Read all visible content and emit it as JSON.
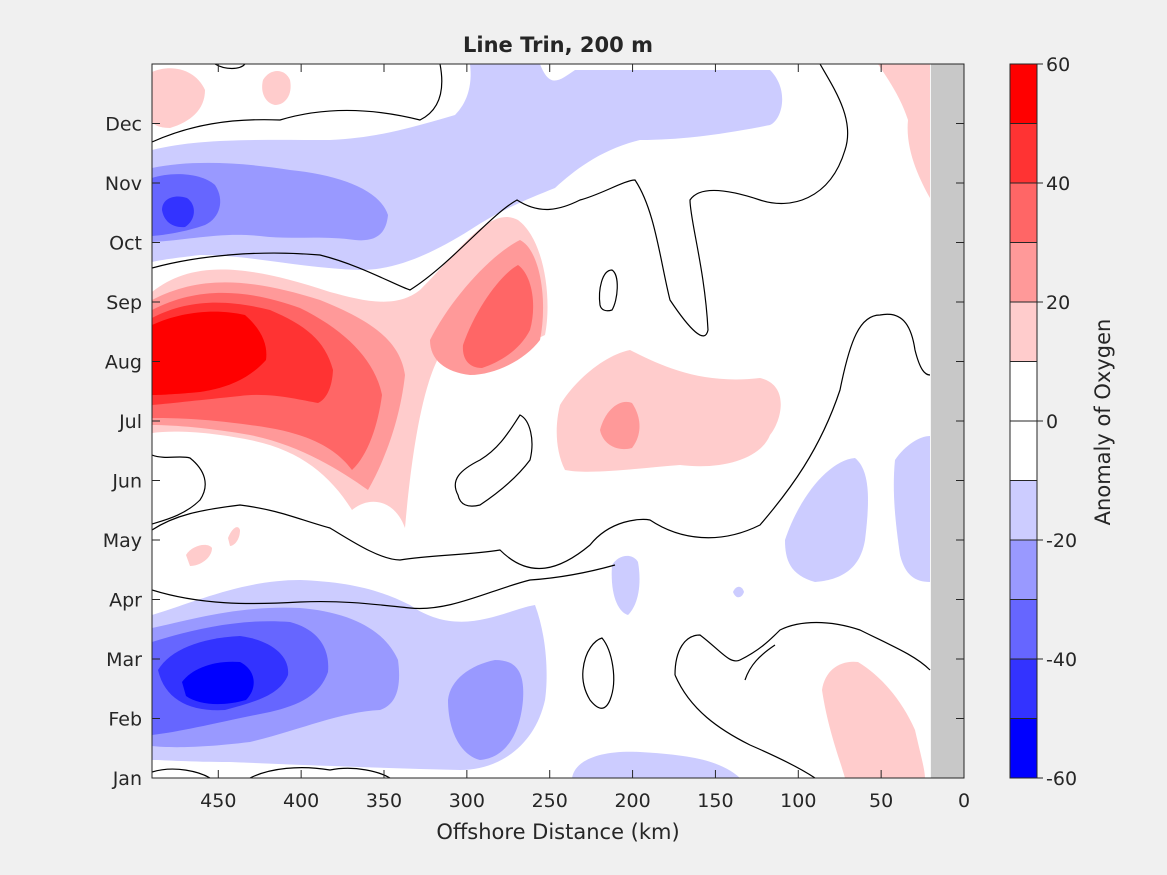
{
  "chart_data": {
    "type": "heatmap",
    "title": "Line Trin, 200 m",
    "xlabel": "Offshore Distance (km)",
    "ylabel": "",
    "xlim": [
      490,
      0
    ],
    "x_reversed": true,
    "xticks": [
      450,
      400,
      350,
      300,
      250,
      200,
      150,
      100,
      50,
      0
    ],
    "ylim": [
      1,
      13
    ],
    "ytick_positions": [
      1,
      2,
      3,
      4,
      5,
      6,
      7,
      8,
      9,
      10,
      11,
      12
    ],
    "yticks": [
      "Jan",
      "Feb",
      "Mar",
      "Apr",
      "May",
      "Jun",
      "Jul",
      "Aug",
      "Sep",
      "Oct",
      "Nov",
      "Dec"
    ],
    "land_mask_from_km": 20,
    "colorbar": {
      "label": "Anomaly of Oxygen",
      "range": [
        -60,
        60
      ],
      "ticks": [
        60,
        40,
        20,
        0,
        -20,
        -40,
        -60
      ],
      "levels": [
        -60,
        -50,
        -40,
        -30,
        -20,
        -10,
        0,
        10,
        20,
        30,
        40,
        50,
        60
      ],
      "colors": [
        "#0000ff",
        "#3333ff",
        "#6666ff",
        "#9999ff",
        "#ccccff",
        "#ffffff",
        "#ffffff",
        "#ffcccc",
        "#ff9999",
        "#ff6666",
        "#ff3333",
        "#ff0000"
      ]
    },
    "anomaly_features": [
      {
        "x": 455,
        "y": 8.1,
        "value": 55
      },
      {
        "x": 390,
        "y": 7.7,
        "value": 38
      },
      {
        "x": 275,
        "y": 8.3,
        "value": 32
      },
      {
        "x": 205,
        "y": 6.9,
        "value": 24
      },
      {
        "x": 40,
        "y": 2.4,
        "value": 14
      },
      {
        "x": 445,
        "y": 2.9,
        "value": -55
      },
      {
        "x": 475,
        "y": 11.4,
        "value": -45
      },
      {
        "x": 290,
        "y": 2.4,
        "value": -28
      },
      {
        "x": 75,
        "y": 5.3,
        "value": -15
      },
      {
        "x": 380,
        "y": 12.8,
        "value": -14
      }
    ],
    "zero_contour": true
  }
}
